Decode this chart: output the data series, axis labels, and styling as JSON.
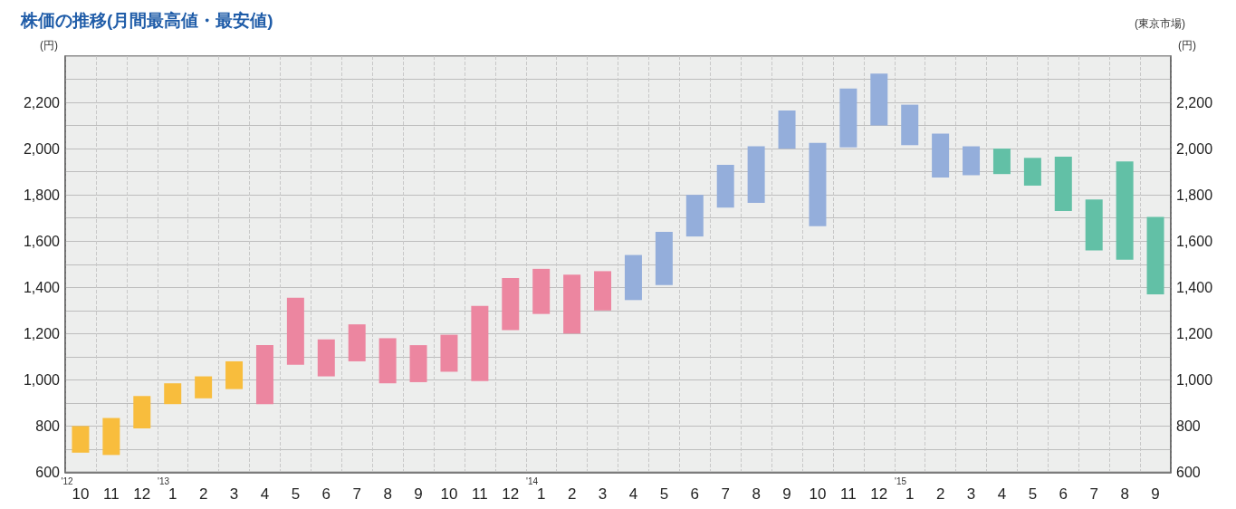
{
  "chart_data": {
    "type": "bar",
    "title": "株価の推移(月間最高値・最安値)",
    "ylabel": "(円)",
    "y2label": "(円)",
    "annotations": [
      "(東京市場)"
    ],
    "categories": [
      "'12\n10",
      "11",
      "12",
      "'13\n1",
      "2",
      "3",
      "4",
      "5",
      "6",
      "7",
      "8",
      "9",
      "10",
      "11",
      "12",
      "'14\n1",
      "2",
      "3",
      "4",
      "5",
      "6",
      "7",
      "8",
      "9",
      "10",
      "11",
      "12",
      "'15\n1",
      "2",
      "3",
      "4",
      "5",
      "6",
      "7",
      "8",
      "9"
    ],
    "base": [
      685,
      675,
      790,
      895,
      920,
      960,
      895,
      1065,
      1015,
      1080,
      985,
      990,
      1035,
      995,
      1215,
      1285,
      1200,
      1300,
      1345,
      1410,
      1620,
      1745,
      1765,
      2000,
      1665,
      2005,
      2100,
      2015,
      1875,
      1885,
      1890,
      1840,
      1730,
      1560,
      1520,
      1370
    ],
    "values": [
      115,
      160,
      140,
      90,
      95,
      120,
      255,
      290,
      160,
      160,
      195,
      160,
      160,
      325,
      225,
      195,
      255,
      170,
      195,
      230,
      180,
      185,
      245,
      165,
      360,
      255,
      225,
      175,
      190,
      125,
      110,
      120,
      235,
      220,
      425,
      335
    ],
    "colors": [
      "#f8bd3d",
      "#f8bd3d",
      "#f8bd3d",
      "#f8bd3d",
      "#f8bd3d",
      "#f8bd3d",
      "#ec86a0",
      "#ec86a0",
      "#ec86a0",
      "#ec86a0",
      "#ec86a0",
      "#ec86a0",
      "#ec86a0",
      "#ec86a0",
      "#ec86a0",
      "#ec86a0",
      "#ec86a0",
      "#ec86a0",
      "#94aedb",
      "#94aedb",
      "#94aedb",
      "#94aedb",
      "#94aedb",
      "#94aedb",
      "#94aedb",
      "#94aedb",
      "#94aedb",
      "#94aedb",
      "#94aedb",
      "#94aedb",
      "#62c0a6",
      "#62c0a6",
      "#62c0a6",
      "#62c0a6",
      "#62c0a6",
      "#62c0a6"
    ],
    "ylim": [
      600,
      2400
    ],
    "yticks": [
      600,
      {
        "value": 700,
        "label": null
      },
      800,
      {
        "value": 900,
        "label": null
      },
      {
        "value": 1000,
        "label": "1,000"
      },
      {
        "value": 1100,
        "label": null
      },
      {
        "value": 1200,
        "label": "1,200"
      },
      {
        "value": 1300,
        "label": null
      },
      {
        "value": 1400,
        "label": "1,400"
      },
      {
        "value": 1500,
        "label": null
      },
      {
        "value": 1600,
        "label": "1,600"
      },
      {
        "value": 1700,
        "label": null
      },
      {
        "value": 1800,
        "label": "1,800"
      },
      {
        "value": 1900,
        "label": null
      },
      {
        "value": 2000,
        "label": "2,000"
      },
      {
        "value": 2100,
        "label": null
      },
      {
        "value": 2200,
        "label": "2,200"
      },
      {
        "value": 2300,
        "label": null
      },
      {
        "value": 2400,
        "label": null
      }
    ],
    "y2lim": [
      600,
      2400
    ],
    "y2ticks": [
      600,
      {
        "value": 700,
        "label": null
      },
      800,
      {
        "value": 900,
        "label": null
      },
      {
        "value": 1000,
        "label": "1,000"
      },
      {
        "value": 1100,
        "label": null
      },
      {
        "value": 1200,
        "label": "1,200"
      },
      {
        "value": 1300,
        "label": null
      },
      {
        "value": 1400,
        "label": "1,400"
      },
      {
        "value": 1500,
        "label": null
      },
      {
        "value": 1600,
        "label": "1,600"
      },
      {
        "value": 1700,
        "label": null
      },
      {
        "value": 1800,
        "label": "1,800"
      },
      {
        "value": 1900,
        "label": null
      },
      {
        "value": 2000,
        "label": "2,000"
      },
      {
        "value": 2100,
        "label": null
      },
      {
        "value": 2200,
        "label": "2,200"
      },
      {
        "value": 2300,
        "label": null
      },
      {
        "value": 2400,
        "label": null
      }
    ],
    "grid": true
  }
}
